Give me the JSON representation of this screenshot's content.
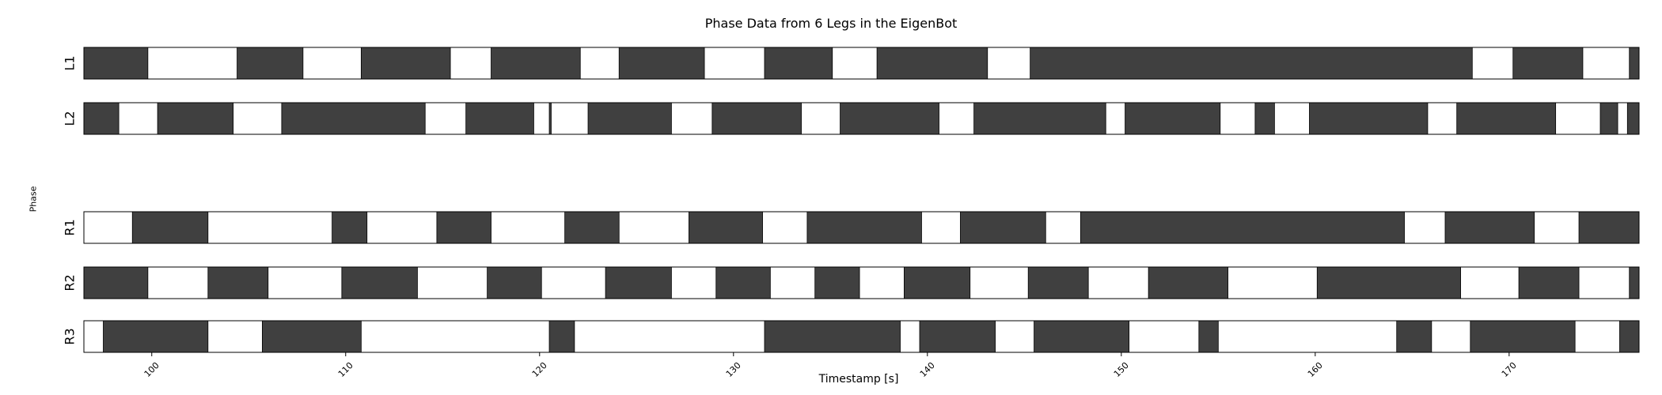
{
  "chart_data": {
    "type": "broken_barh",
    "title": "Phase Data from 6 Legs in the EigenBot",
    "xlabel": "Timestamp [s]",
    "ylabel": "Phase",
    "xlim": [
      96.5,
      176.7
    ],
    "xticks": [
      100,
      110,
      120,
      130,
      140,
      150,
      160,
      170
    ],
    "xtick_rotation": 45,
    "grid": false,
    "colors": {
      "dark": "#404040",
      "light": "#ffffff",
      "edge": "#000000"
    },
    "rows": [
      {
        "name": "L1",
        "dark_intervals": [
          [
            96.5,
            99.8
          ],
          [
            104.4,
            107.8
          ],
          [
            110.8,
            115.4
          ],
          [
            117.5,
            122.1
          ],
          [
            124.1,
            128.5
          ],
          [
            131.6,
            135.1
          ],
          [
            137.4,
            143.1
          ],
          [
            145.3,
            168.1
          ],
          [
            170.2,
            173.8
          ],
          [
            176.2,
            176.7
          ]
        ]
      },
      {
        "name": "L2",
        "dark_intervals": [
          [
            96.5,
            98.3
          ],
          [
            100.3,
            104.2
          ],
          [
            106.7,
            114.1
          ],
          [
            116.2,
            119.7
          ],
          [
            120.5,
            120.6
          ],
          [
            122.5,
            126.8
          ],
          [
            128.9,
            133.5
          ],
          [
            135.5,
            140.6
          ],
          [
            142.4,
            149.2
          ],
          [
            151.2,
            150.2
          ],
          [
            150.2,
            155.1
          ],
          [
            156.9,
            157.9
          ],
          [
            159.7,
            165.8
          ],
          [
            167.3,
            172.4
          ],
          [
            174.7,
            175.6
          ],
          [
            176.1,
            176.7
          ]
        ]
      },
      {
        "name": "",
        "dark_intervals": []
      },
      {
        "name": "R1",
        "dark_intervals": [
          [
            99.0,
            102.9
          ],
          [
            109.3,
            111.1
          ],
          [
            114.7,
            117.5
          ],
          [
            121.3,
            124.1
          ],
          [
            127.7,
            131.5
          ],
          [
            133.8,
            139.7
          ],
          [
            141.7,
            146.1
          ],
          [
            147.9,
            164.6
          ],
          [
            166.7,
            171.3
          ],
          [
            173.6,
            176.7
          ]
        ]
      },
      {
        "name": "R2",
        "dark_intervals": [
          [
            96.5,
            99.8
          ],
          [
            102.9,
            106.0
          ],
          [
            109.8,
            113.7
          ],
          [
            117.3,
            120.1
          ],
          [
            123.4,
            126.8
          ],
          [
            129.1,
            131.9
          ],
          [
            134.2,
            136.5
          ],
          [
            138.8,
            142.2
          ],
          [
            145.2,
            148.3
          ],
          [
            151.4,
            155.5
          ],
          [
            160.1,
            167.5
          ],
          [
            170.5,
            173.6
          ],
          [
            176.2,
            176.7
          ]
        ]
      },
      {
        "name": "R3",
        "dark_intervals": [
          [
            97.5,
            102.9
          ],
          [
            105.7,
            110.8
          ],
          [
            120.5,
            121.8
          ],
          [
            131.6,
            138.6
          ],
          [
            139.6,
            143.5
          ],
          [
            145.5,
            150.4
          ],
          [
            154.0,
            155.0
          ],
          [
            164.2,
            166.0
          ],
          [
            168.0,
            173.4
          ],
          [
            175.7,
            176.7
          ]
        ]
      }
    ]
  }
}
